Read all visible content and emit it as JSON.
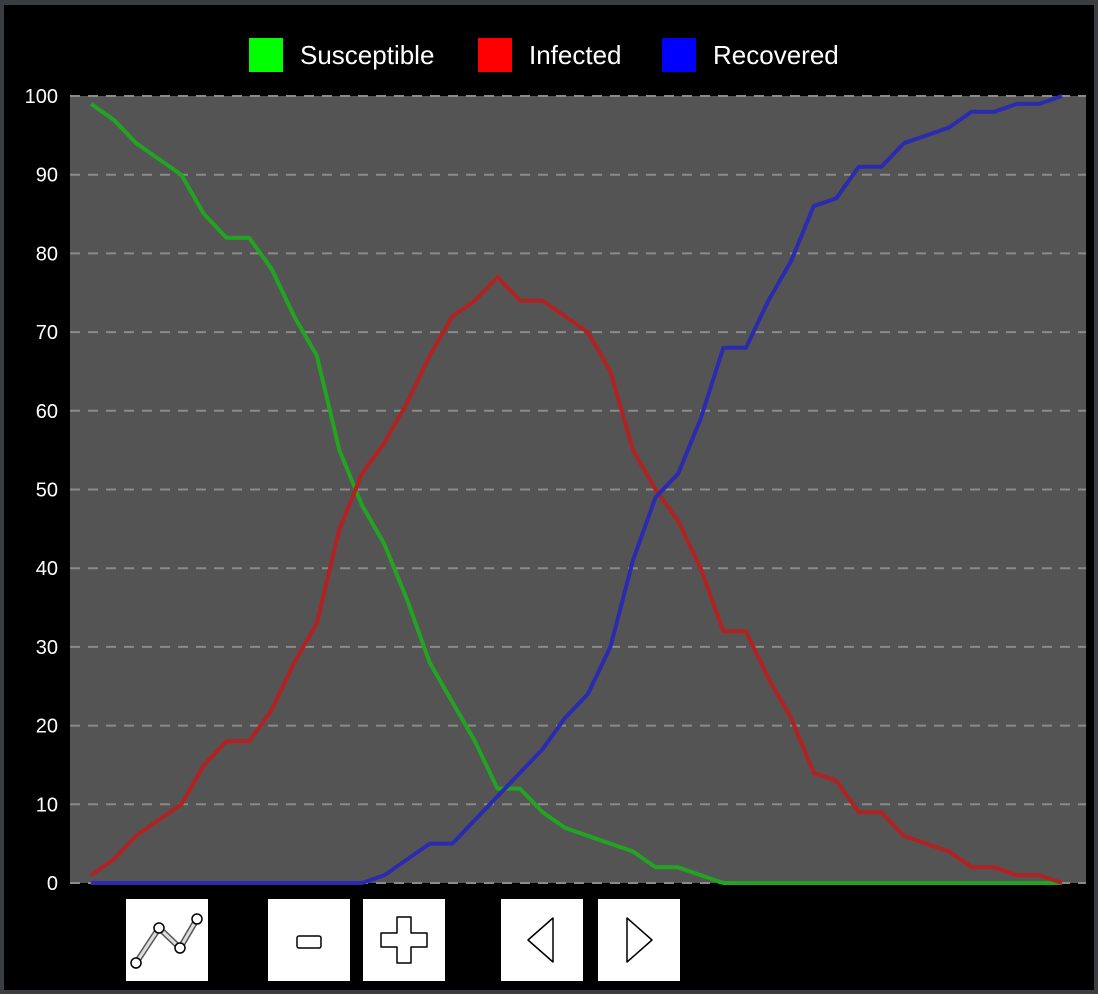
{
  "chart_data": {
    "type": "line",
    "title": "",
    "xlabel": "",
    "ylabel": "",
    "ylim": [
      0,
      100
    ],
    "yticks": [
      "0",
      "10",
      "20",
      "30",
      "40",
      "50",
      "60",
      "70",
      "80",
      "90",
      "100"
    ],
    "grid": true,
    "legend_position": "top",
    "x": [
      0,
      1,
      2,
      3,
      4,
      5,
      6,
      7,
      8,
      9,
      10,
      11,
      12,
      13,
      14,
      15,
      16,
      17,
      18,
      19,
      20,
      21,
      22,
      23,
      24,
      25,
      26,
      27,
      28,
      29,
      30,
      31,
      32,
      33,
      34,
      35,
      36,
      37,
      38,
      39,
      40,
      41,
      42,
      43
    ],
    "series": [
      {
        "name": "Susceptible",
        "color": "#00ff00",
        "line_color": "#22a322",
        "values": [
          99,
          97,
          94,
          92,
          90,
          85,
          82,
          82,
          78,
          72,
          67,
          55,
          48,
          43,
          36,
          28,
          23,
          18,
          12,
          12,
          9,
          7,
          6,
          5,
          4,
          2,
          2,
          1,
          0,
          0,
          0,
          0,
          0,
          0,
          0,
          0,
          0,
          0,
          0,
          0,
          0,
          0,
          0,
          0
        ]
      },
      {
        "name": "Infected",
        "color": "#ff0000",
        "line_color": "#b22222",
        "values": [
          1,
          3,
          6,
          8,
          10,
          15,
          18,
          18,
          22,
          28,
          33,
          45,
          52,
          56,
          61,
          67,
          72,
          74,
          77,
          74,
          74,
          72,
          70,
          65,
          55,
          50,
          46,
          40,
          32,
          32,
          26,
          21,
          14,
          13,
          9,
          9,
          6,
          5,
          4,
          2,
          2,
          1,
          1,
          0
        ]
      },
      {
        "name": "Recovered",
        "color": "#0000ff",
        "line_color": "#2b2bb0",
        "values": [
          0,
          0,
          0,
          0,
          0,
          0,
          0,
          0,
          0,
          0,
          0,
          0,
          0,
          1,
          3,
          5,
          5,
          8,
          11,
          14,
          17,
          21,
          24,
          30,
          41,
          49,
          52,
          59,
          68,
          68,
          74,
          79,
          86,
          87,
          91,
          91,
          94,
          95,
          96,
          98,
          98,
          99,
          99,
          100
        ]
      }
    ]
  },
  "toolbar": {
    "buttons": [
      {
        "name": "line-chart-button",
        "icon": "line-chart-icon"
      },
      {
        "name": "zoom-out-button",
        "icon": "minus-icon"
      },
      {
        "name": "zoom-in-button",
        "icon": "plus-icon"
      },
      {
        "name": "previous-button",
        "icon": "triangle-left-icon"
      },
      {
        "name": "next-button",
        "icon": "triangle-right-icon"
      }
    ]
  },
  "colors": {
    "background": "#000000",
    "plot_background": "#545454",
    "grid": "#8a8a8a",
    "text": "#ffffff"
  }
}
